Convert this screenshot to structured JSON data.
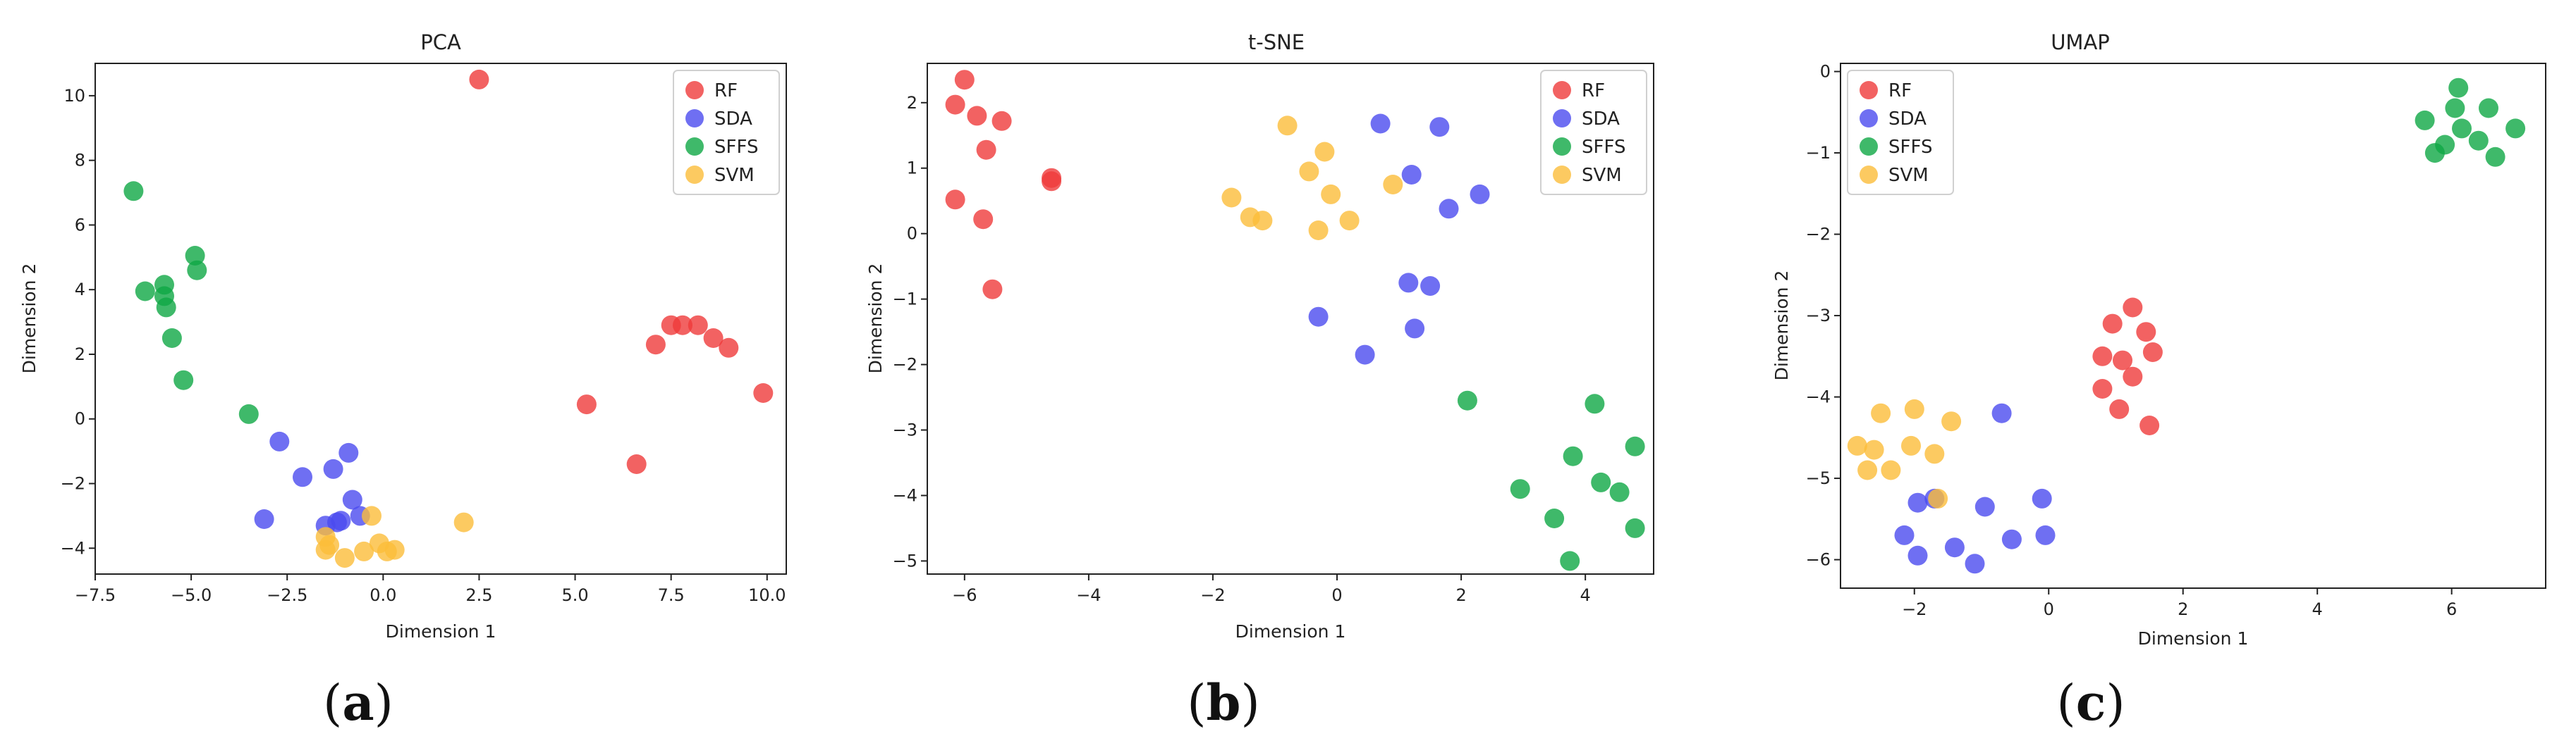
{
  "colors": {
    "RF": "#ef3b3b",
    "SDA": "#4b4bef",
    "SFFS": "#0fa845",
    "SVM": "#fbbd3a"
  },
  "chart_data": [
    {
      "type": "scatter",
      "title": "PCA",
      "xlabel": "Dimension 1",
      "ylabel": "Dimension 2",
      "xlim": [
        -7.5,
        10.5
      ],
      "ylim": [
        -4.8,
        11.0
      ],
      "xticks": [
        -7.5,
        -5.0,
        -2.5,
        0.0,
        2.5,
        5.0,
        7.5,
        10.0
      ],
      "xtick_labels": [
        "−7.5",
        "−5.0",
        "−2.5",
        "0.0",
        "2.5",
        "5.0",
        "7.5",
        "10.0"
      ],
      "yticks": [
        -4,
        -2,
        0,
        2,
        4,
        6,
        8,
        10
      ],
      "ytick_labels": [
        "−4",
        "−2",
        "0",
        "2",
        "4",
        "6",
        "8",
        "10"
      ],
      "legend": [
        "RF",
        "SDA",
        "SFFS",
        "SVM"
      ],
      "legend_position": "top-right",
      "caption": "a",
      "series": [
        {
          "name": "RF",
          "points": [
            [
              2.5,
              10.5
            ],
            [
              7.5,
              2.9
            ],
            [
              7.8,
              2.9
            ],
            [
              8.2,
              2.9
            ],
            [
              7.1,
              2.3
            ],
            [
              8.6,
              2.5
            ],
            [
              9.0,
              2.2
            ],
            [
              9.9,
              0.8
            ],
            [
              5.3,
              0.45
            ],
            [
              6.6,
              -1.4
            ]
          ]
        },
        {
          "name": "SDA",
          "points": [
            [
              -2.7,
              -0.7
            ],
            [
              -0.9,
              -1.05
            ],
            [
              -1.3,
              -1.55
            ],
            [
              -2.1,
              -1.8
            ],
            [
              -0.8,
              -2.5
            ],
            [
              -3.1,
              -3.1
            ],
            [
              -0.6,
              -3.0
            ],
            [
              -1.1,
              -3.15
            ],
            [
              -1.2,
              -3.2
            ],
            [
              -1.5,
              -3.3
            ]
          ]
        },
        {
          "name": "SFFS",
          "points": [
            [
              -6.5,
              7.05
            ],
            [
              -4.9,
              5.05
            ],
            [
              -4.85,
              4.6
            ],
            [
              -5.7,
              4.15
            ],
            [
              -5.7,
              3.8
            ],
            [
              -6.2,
              3.95
            ],
            [
              -5.65,
              3.45
            ],
            [
              -5.5,
              2.5
            ],
            [
              -5.2,
              1.2
            ],
            [
              -3.5,
              0.15
            ]
          ]
        },
        {
          "name": "SVM",
          "points": [
            [
              2.1,
              -3.2
            ],
            [
              -0.3,
              -3.0
            ],
            [
              -1.5,
              -3.65
            ],
            [
              -0.1,
              -3.85
            ],
            [
              -1.4,
              -3.9
            ],
            [
              0.3,
              -4.05
            ],
            [
              -1.5,
              -4.05
            ],
            [
              -0.5,
              -4.1
            ],
            [
              0.1,
              -4.1
            ],
            [
              -1.0,
              -4.3
            ]
          ]
        }
      ]
    },
    {
      "type": "scatter",
      "title": "t-SNE",
      "xlabel": "Dimension 1",
      "ylabel": "Dimension 2",
      "xlim": [
        -6.6,
        5.1
      ],
      "ylim": [
        -5.2,
        2.6
      ],
      "xticks": [
        -6,
        -4,
        -2,
        0,
        2,
        4
      ],
      "xtick_labels": [
        "−6",
        "−4",
        "−2",
        "0",
        "2",
        "4"
      ],
      "yticks": [
        -5,
        -4,
        -3,
        -2,
        -1,
        0,
        1,
        2
      ],
      "ytick_labels": [
        "−5",
        "−4",
        "−3",
        "−2",
        "−1",
        "0",
        "1",
        "2"
      ],
      "legend": [
        "RF",
        "SDA",
        "SFFS",
        "SVM"
      ],
      "legend_position": "top-right",
      "caption": "b",
      "series": [
        {
          "name": "RF",
          "points": [
            [
              -6.0,
              2.35
            ],
            [
              -6.15,
              1.97
            ],
            [
              -5.8,
              1.8
            ],
            [
              -5.4,
              1.72
            ],
            [
              -5.65,
              1.28
            ],
            [
              -4.6,
              0.85
            ],
            [
              -4.6,
              0.8
            ],
            [
              -6.15,
              0.52
            ],
            [
              -5.7,
              0.22
            ],
            [
              -5.55,
              -0.85
            ]
          ]
        },
        {
          "name": "SDA",
          "points": [
            [
              0.7,
              1.68
            ],
            [
              1.65,
              1.63
            ],
            [
              1.2,
              0.9
            ],
            [
              2.3,
              0.6
            ],
            [
              1.8,
              0.38
            ],
            [
              1.15,
              -0.75
            ],
            [
              1.5,
              -0.8
            ],
            [
              -0.3,
              -1.27
            ],
            [
              1.25,
              -1.45
            ],
            [
              0.45,
              -1.85
            ]
          ]
        },
        {
          "name": "SFFS",
          "points": [
            [
              2.1,
              -2.55
            ],
            [
              4.15,
              -2.6
            ],
            [
              4.8,
              -3.25
            ],
            [
              3.8,
              -3.4
            ],
            [
              4.25,
              -3.8
            ],
            [
              4.55,
              -3.95
            ],
            [
              2.95,
              -3.9
            ],
            [
              3.5,
              -4.35
            ],
            [
              4.8,
              -4.5
            ],
            [
              3.75,
              -5.0
            ]
          ]
        },
        {
          "name": "SVM",
          "points": [
            [
              -0.8,
              1.65
            ],
            [
              -0.2,
              1.25
            ],
            [
              -0.45,
              0.95
            ],
            [
              0.9,
              0.75
            ],
            [
              -0.1,
              0.6
            ],
            [
              -1.7,
              0.55
            ],
            [
              -1.4,
              0.25
            ],
            [
              -1.2,
              0.2
            ],
            [
              0.2,
              0.2
            ],
            [
              -0.3,
              0.05
            ]
          ]
        }
      ]
    },
    {
      "type": "scatter",
      "title": "UMAP",
      "xlabel": "Dimension 1",
      "ylabel": "Dimension 2",
      "xlim": [
        -3.1,
        7.4
      ],
      "ylim": [
        -6.35,
        0.1
      ],
      "xticks": [
        -2,
        0,
        2,
        4,
        6
      ],
      "xtick_labels": [
        "−2",
        "0",
        "2",
        "4",
        "6"
      ],
      "yticks": [
        -6,
        -5,
        -4,
        -3,
        -2,
        -1,
        0
      ],
      "ytick_labels": [
        "−6",
        "−5",
        "−4",
        "−3",
        "−2",
        "−1",
        "0"
      ],
      "legend": [
        "RF",
        "SDA",
        "SFFS",
        "SVM"
      ],
      "legend_position": "top-left",
      "caption": "c",
      "series": [
        {
          "name": "RF",
          "points": [
            [
              1.25,
              -2.9
            ],
            [
              0.95,
              -3.1
            ],
            [
              1.45,
              -3.2
            ],
            [
              0.8,
              -3.5
            ],
            [
              1.1,
              -3.55
            ],
            [
              1.55,
              -3.45
            ],
            [
              1.25,
              -3.75
            ],
            [
              0.8,
              -3.9
            ],
            [
              1.05,
              -4.15
            ],
            [
              1.5,
              -4.35
            ]
          ]
        },
        {
          "name": "SDA",
          "points": [
            [
              -0.7,
              -4.2
            ],
            [
              -0.1,
              -5.25
            ],
            [
              -1.7,
              -5.25
            ],
            [
              -1.95,
              -5.3
            ],
            [
              -0.95,
              -5.35
            ],
            [
              -2.15,
              -5.7
            ],
            [
              -0.55,
              -5.75
            ],
            [
              -0.05,
              -5.7
            ],
            [
              -1.4,
              -5.85
            ],
            [
              -1.95,
              -5.95
            ],
            [
              -1.1,
              -6.05
            ]
          ]
        },
        {
          "name": "SFFS",
          "points": [
            [
              6.1,
              -0.2
            ],
            [
              6.55,
              -0.45
            ],
            [
              6.05,
              -0.45
            ],
            [
              5.6,
              -0.6
            ],
            [
              6.95,
              -0.7
            ],
            [
              6.15,
              -0.7
            ],
            [
              5.9,
              -0.9
            ],
            [
              6.4,
              -0.85
            ],
            [
              5.75,
              -1.0
            ],
            [
              6.65,
              -1.05
            ]
          ]
        },
        {
          "name": "SVM",
          "points": [
            [
              -2.5,
              -4.2
            ],
            [
              -2.0,
              -4.15
            ],
            [
              -1.45,
              -4.3
            ],
            [
              -2.05,
              -4.6
            ],
            [
              -2.85,
              -4.6
            ],
            [
              -2.6,
              -4.65
            ],
            [
              -1.7,
              -4.7
            ],
            [
              -2.35,
              -4.9
            ],
            [
              -2.7,
              -4.9
            ],
            [
              -1.65,
              -5.25
            ]
          ]
        }
      ]
    }
  ]
}
